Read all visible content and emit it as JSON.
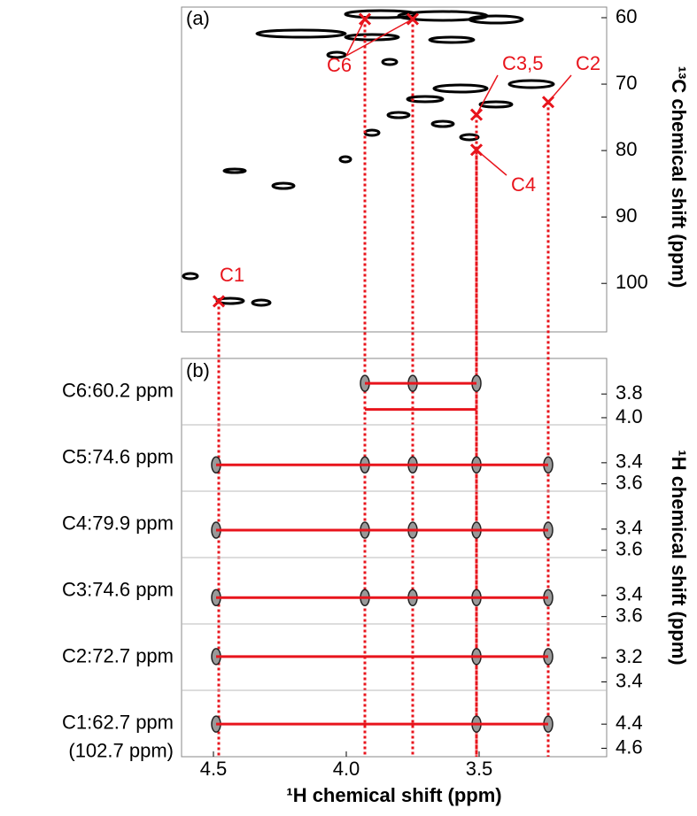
{
  "chart_data": [
    {
      "type": "scatter",
      "label": "(a)",
      "y_label": "¹³C chemical shift (ppm)",
      "color": "#e8141c",
      "xlim": [
        4.62,
        3.02
      ],
      "ylim": [
        58.4,
        107.3
      ],
      "yticks": [
        60,
        70,
        80,
        90,
        100
      ],
      "x": [
        3.93,
        3.75,
        3.51,
        3.24,
        3.51,
        4.48
      ],
      "values": [
        60.2,
        60.2,
        74.6,
        72.7,
        79.9,
        102.7
      ],
      "point_labels": [
        "C6",
        null,
        "C3,5",
        "C2",
        "C4",
        "C1"
      ]
    },
    {
      "type": "strips",
      "label": "(b)",
      "x_label": "¹H chemical shift (ppm)",
      "y_label": "¹H chemical shift (ppm)",
      "color": "#e8141c",
      "xlim": [
        4.62,
        3.02
      ],
      "xticks": [
        4.5,
        {
          "value": 4,
          "label": "4.0"
        },
        3.5
      ],
      "strips": [
        {
          "label": "C6:60.2 ppm",
          "ylim": [
            3.5,
            4.06
          ],
          "yticks": [
            3.8,
            {
              "value": 4,
              "label": "4.0"
            }
          ],
          "lines": [
            {
              "y": 3.71,
              "x": [
                3.93,
                3.51
              ]
            },
            {
              "y": 3.93,
              "x": [
                3.93,
                3.51
              ]
            }
          ],
          "peaks": [
            3.93,
            3.75,
            3.51
          ]
        },
        {
          "label": "C5:74.6 ppm",
          "ylim": [
            3.04,
            3.67
          ],
          "yticks": [
            3.4,
            3.6
          ],
          "lines": [
            {
              "y": 3.42,
              "x": [
                4.49,
                3.24
              ]
            }
          ],
          "peaks": [
            4.49,
            3.93,
            3.75,
            3.51,
            3.24
          ]
        },
        {
          "label": "C4:79.9 ppm",
          "ylim": [
            3.04,
            3.67
          ],
          "yticks": [
            3.4,
            3.6
          ],
          "lines": [
            {
              "y": 3.41,
              "x": [
                4.49,
                3.24
              ]
            }
          ],
          "peaks": [
            4.49,
            3.93,
            3.75,
            3.51,
            3.24
          ]
        },
        {
          "label": "C3:74.6 ppm",
          "ylim": [
            3.04,
            3.67
          ],
          "yticks": [
            3.4,
            3.6
          ],
          "lines": [
            {
              "y": 3.42,
              "x": [
                4.49,
                3.24
              ]
            }
          ],
          "peaks": [
            4.49,
            3.93,
            3.75,
            3.51,
            3.24
          ]
        },
        {
          "label": "C2:72.7 ppm",
          "ylim": [
            2.92,
            3.47
          ],
          "yticks": [
            3.2,
            3.4
          ],
          "lines": [
            {
              "y": 3.19,
              "x": [
                4.49,
                3.24
              ]
            }
          ],
          "peaks": [
            4.49,
            3.51,
            3.24
          ]
        },
        {
          "label": "C1:62.7 ppm",
          "sublabel": "(102.7 ppm)",
          "ylim": [
            4.12,
            4.67
          ],
          "yticks": [
            4.4,
            4.6
          ],
          "lines": [
            {
              "y": 4.4,
              "x": [
                4.49,
                3.24
              ]
            }
          ],
          "peaks": [
            4.49,
            3.51,
            3.24
          ]
        }
      ]
    }
  ]
}
